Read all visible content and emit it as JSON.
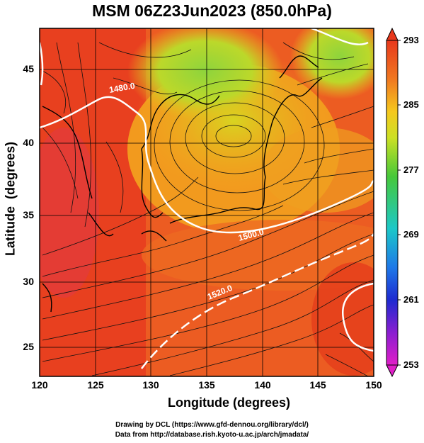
{
  "title": "MSM 06Z23Jun2023 (850.0hPa)",
  "x_axis_title": "Longitude (degrees)",
  "y_axis_title": "Latitude  (degrees)",
  "x_ticks": [
    "120",
    "125",
    "130",
    "135",
    "140",
    "145",
    "150"
  ],
  "y_ticks": [
    "45",
    "40",
    "35",
    "30",
    "25"
  ],
  "colorbar": {
    "ticks": [
      "293",
      "285",
      "277",
      "269",
      "261",
      "253"
    ],
    "min": 253,
    "max": 293
  },
  "contour_labels": [
    "1480.0",
    "1500.0",
    "1520.0"
  ],
  "credits": [
    "Drawing by DCL (https://www.gfd-dennou.org/library/dcl/)",
    "Data from http://database.rish.kyoto-u.ac.jp/arch/jmadata/"
  ],
  "colors": {
    "warm": "#e8401f",
    "mid": "#f08a1e",
    "yellow": "#d8d21a",
    "green": "#8fd23a",
    "contour": "#ffffff",
    "streamline": "#000000"
  }
}
